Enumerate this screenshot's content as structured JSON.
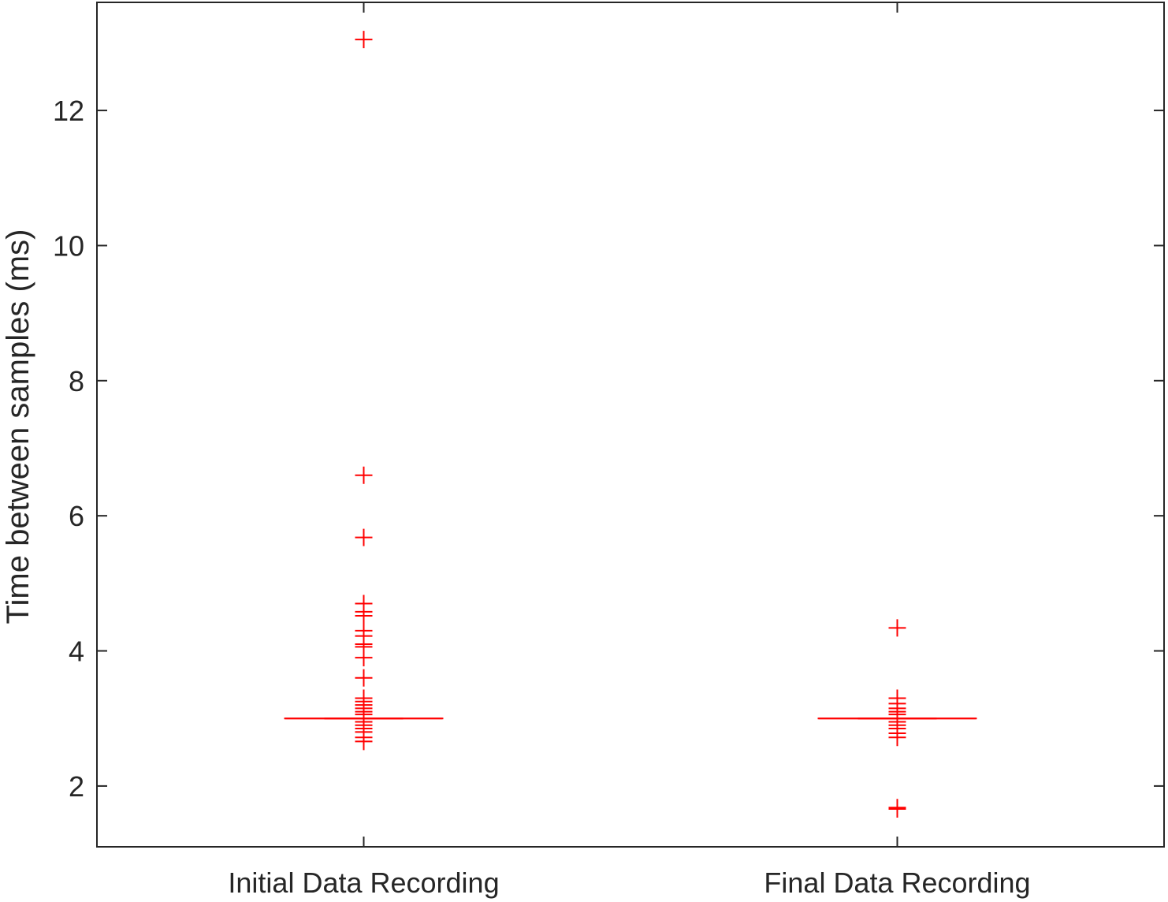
{
  "chart_data": {
    "type": "box",
    "title": "",
    "xlabel": "",
    "ylabel": "Time between samples (ms)",
    "ylim": [
      1.1,
      13.6
    ],
    "yticks": [
      2,
      4,
      6,
      8,
      10,
      12
    ],
    "grid": false,
    "categories": [
      "Initial Data Recording",
      "Final Data Recording"
    ],
    "color": "#ff0000",
    "axis_color": "#262626",
    "boxes": [
      {
        "category": "Initial Data Recording",
        "median": 3.0,
        "q1": 3.0,
        "q3": 3.0,
        "whisker_low": 3.0,
        "whisker_high": 3.0,
        "outliers": [
          13.05,
          6.6,
          5.68,
          4.7,
          4.58,
          4.52,
          4.3,
          4.22,
          4.1,
          4.06,
          3.9,
          3.6,
          3.3,
          3.25,
          3.2,
          3.15,
          3.1,
          3.06,
          2.95,
          2.9,
          2.85,
          2.8,
          2.72,
          2.66
        ]
      },
      {
        "category": "Final Data Recording",
        "median": 3.0,
        "q1": 3.0,
        "q3": 3.0,
        "whisker_low": 3.0,
        "whisker_high": 3.0,
        "outliers": [
          4.34,
          3.3,
          3.22,
          3.15,
          3.1,
          3.06,
          2.95,
          2.9,
          2.85,
          2.78,
          2.72,
          1.68,
          1.66
        ]
      }
    ]
  }
}
